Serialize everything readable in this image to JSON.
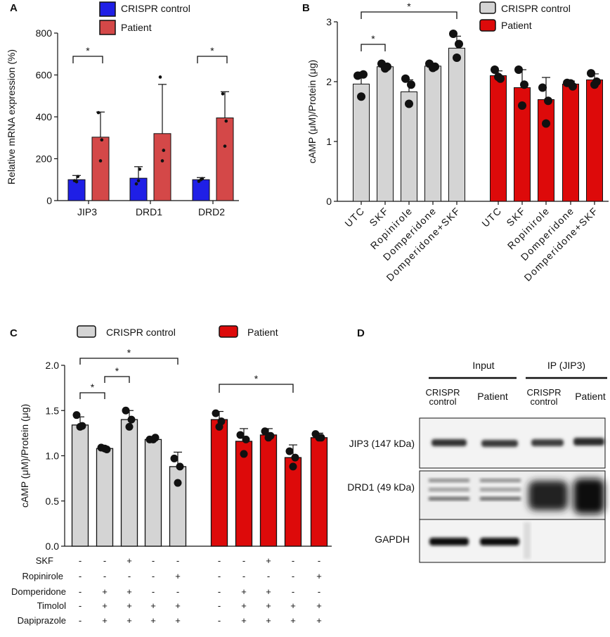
{
  "colors": {
    "blue": "#1f1fe6",
    "red_a": "#d44848",
    "red": "#dd0a0a",
    "gray": "#d4d4d4",
    "black": "#111111"
  },
  "panels": {
    "A": "A",
    "B": "B",
    "C": "C",
    "D": "D"
  },
  "chart_data": [
    {
      "panel": "A",
      "type": "bar",
      "ylabel": "Relative mRNA expression (%)",
      "ylim": [
        0,
        800
      ],
      "yticks": [
        0,
        200,
        400,
        600,
        800
      ],
      "categories": [
        "JIP3",
        "DRD1",
        "DRD2"
      ],
      "legend": [
        "CRISPR control",
        "Patient"
      ],
      "legend_placement": "top",
      "series": [
        {
          "name": "CRISPR control",
          "color": "#1f1fe6",
          "values": [
            100,
            107,
            100
          ],
          "errors": [
            20,
            55,
            10
          ],
          "points": [
            [
              95,
              115,
              90
            ],
            [
              80,
              150,
              95
            ],
            [
              92,
              105,
              100
            ]
          ]
        },
        {
          "name": "Patient",
          "color": "#d44848",
          "values": [
            303,
            320,
            395
          ],
          "errors": [
            120,
            235,
            125
          ],
          "points": [
            [
              420,
              290,
              190
            ],
            [
              590,
              240,
              190
            ],
            [
              510,
              380,
              260
            ]
          ]
        }
      ],
      "significance": [
        {
          "label": "*",
          "category": 0
        },
        {
          "label": "*",
          "category": 2
        }
      ]
    },
    {
      "panel": "B",
      "type": "bar",
      "ylabel": "cAMP (μM)/Protein (μg)",
      "ylim": [
        0,
        3
      ],
      "yticks": [
        0,
        1,
        2,
        3
      ],
      "categories": [
        "UTC",
        "SKF",
        "Ropinirole",
        "Domperidone",
        "Domperidone+SKF"
      ],
      "legend": [
        "CRISPR control",
        "Patient"
      ],
      "legend_placement": "top-right",
      "series": [
        {
          "name": "CRISPR control",
          "color": "#d4d4d4",
          "values": [
            1.96,
            2.25,
            1.83,
            2.26,
            2.56
          ],
          "errors": [
            0.2,
            0.05,
            0.2,
            0.03,
            0.2
          ],
          "points": [
            [
              2.1,
              2.12,
              1.75
            ],
            [
              2.3,
              2.25,
              2.22
            ],
            [
              2.05,
              1.95,
              1.63
            ],
            [
              2.3,
              2.25,
              2.23
            ],
            [
              2.8,
              2.63,
              2.4
            ]
          ]
        },
        {
          "name": "Patient",
          "color": "#dd0a0a",
          "values": [
            2.1,
            1.9,
            1.7,
            1.96,
            2.03
          ],
          "errors": [
            0.08,
            0.3,
            0.37,
            0.05,
            0.1
          ],
          "points": [
            [
              2.2,
              2.05,
              2.08
            ],
            [
              2.2,
              1.95,
              1.6
            ],
            [
              1.9,
              1.68,
              1.3
            ],
            [
              1.98,
              1.92,
              1.97
            ],
            [
              2.14,
              2.0,
              1.95
            ]
          ]
        }
      ],
      "significance": [
        {
          "label": "*",
          "from": 0,
          "to": 1
        },
        {
          "label": "*",
          "from": 0,
          "to": 4
        }
      ]
    },
    {
      "panel": "C",
      "type": "bar",
      "ylabel": "cAMP (μM)/Protein (μg)",
      "ylim": [
        0,
        2.0
      ],
      "yticks": [
        "0.0",
        "0.5",
        "1.0",
        "1.5",
        "2.0"
      ],
      "legend": [
        "CRISPR control",
        "Patient"
      ],
      "legend_placement": "top",
      "series": [
        {
          "name": "CRISPR control",
          "color": "#d4d4d4",
          "values": [
            1.34,
            1.08,
            1.4,
            1.18,
            0.88
          ],
          "errors": [
            0.09,
            0.02,
            0.1,
            0.02,
            0.16
          ],
          "points": [
            [
              1.45,
              1.33,
              1.32
            ],
            [
              1.09,
              1.07,
              1.08
            ],
            [
              1.5,
              1.4,
              1.32
            ],
            [
              1.18,
              1.2,
              1.18
            ],
            [
              0.97,
              0.88,
              0.7
            ]
          ]
        },
        {
          "name": "Patient",
          "color": "#dd0a0a",
          "values": [
            1.4,
            1.16,
            1.23,
            0.98,
            1.2
          ],
          "errors": [
            0.09,
            0.14,
            0.07,
            0.14,
            0.05
          ],
          "points": [
            [
              1.47,
              1.38,
              1.32
            ],
            [
              1.23,
              1.18,
              1.02
            ],
            [
              1.27,
              1.22,
              1.2
            ],
            [
              1.05,
              0.98,
              0.88
            ],
            [
              1.24,
              1.2,
              1.2
            ]
          ]
        }
      ],
      "significance": [
        {
          "label": "*",
          "from": 0,
          "to": 1
        },
        {
          "label": "*",
          "from": 1,
          "to": 2
        },
        {
          "label": "*",
          "from": 0,
          "to": 4
        },
        {
          "label": "*",
          "from": 5,
          "to": 8
        }
      ],
      "condition_table": {
        "rows": [
          "SKF",
          "Ropinirole",
          "Domperidone",
          "Timolol",
          "Dapiprazole"
        ],
        "values": [
          [
            "-",
            "-",
            "+",
            "-",
            "-",
            "-",
            "-",
            "+",
            "-",
            "-"
          ],
          [
            "-",
            "-",
            "-",
            "-",
            "+",
            "-",
            "-",
            "-",
            "-",
            "+"
          ],
          [
            "-",
            "+",
            "+",
            "-",
            "-",
            "-",
            "+",
            "+",
            "-",
            "-"
          ],
          [
            "-",
            "+",
            "+",
            "+",
            "+",
            "-",
            "+",
            "+",
            "+",
            "+"
          ],
          [
            "-",
            "+",
            "+",
            "+",
            "+",
            "-",
            "+",
            "+",
            "+",
            "+"
          ]
        ]
      }
    }
  ],
  "blot": {
    "group_input": "Input",
    "group_ip": "IP (JIP3)",
    "lane1_line1": "CRISPR",
    "lane1_line2": "control",
    "lane2": "Patient",
    "lane3_line1": "CRISPR",
    "lane3_line2": "control",
    "lane4": "Patient",
    "row1": "JIP3 (147 kDa)",
    "row2": "DRD1 (49 kDa)",
    "row3": "GAPDH"
  }
}
